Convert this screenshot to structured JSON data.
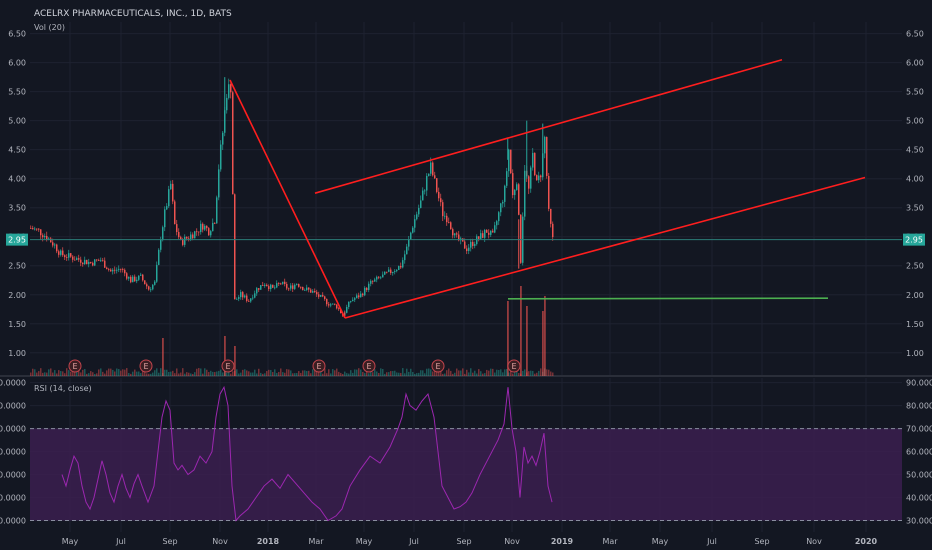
{
  "header": {
    "title": "ACELRX PHARMACEUTICALS, INC., 1D, BATS",
    "volume_label": "Vol (20)",
    "rsi_label": "RSI (14, close)"
  },
  "price_tag": "2.95",
  "colors": {
    "background": "#131722",
    "grid": "#1e2230",
    "up": "#26a69a",
    "down": "#ef5350",
    "trendline": "#ff1e1e",
    "support": "#4caf50",
    "rsi_line": "#9c27b0",
    "rsi_band": "#3b1f4f",
    "price_line": "#2c7d78"
  },
  "chart_data": [
    {
      "type": "candlestick",
      "title": "ACELRX PHARMACEUTICALS, INC., 1D, BATS",
      "ylim": [
        0.6,
        6.7
      ],
      "yticks": [
        "6.50",
        "6.00",
        "5.50",
        "5.00",
        "4.50",
        "4.00",
        "3.50",
        "3.00",
        "2.50",
        "2.00",
        "1.50",
        "1.00"
      ],
      "xticks": [
        "May",
        "Jul",
        "Sep",
        "Nov",
        "2018",
        "Mar",
        "May",
        "Jul",
        "Sep",
        "Nov",
        "2019",
        "Mar",
        "May",
        "Jul",
        "Sep",
        "Nov",
        "2020"
      ],
      "last_price": 2.95,
      "price_path": [
        [
          0,
          3.15
        ],
        [
          8,
          3.1
        ],
        [
          16,
          3.0
        ],
        [
          24,
          2.85
        ],
        [
          30,
          2.7
        ],
        [
          40,
          2.65
        ],
        [
          50,
          2.6
        ],
        [
          60,
          2.55
        ],
        [
          70,
          2.6
        ],
        [
          80,
          2.4
        ],
        [
          90,
          2.45
        ],
        [
          100,
          2.25
        ],
        [
          110,
          2.3
        ],
        [
          118,
          2.1
        ],
        [
          124,
          2.2
        ],
        [
          130,
          3.0
        ],
        [
          134,
          3.4
        ],
        [
          140,
          3.9
        ],
        [
          144,
          3.2
        ],
        [
          150,
          2.9
        ],
        [
          158,
          3.0
        ],
        [
          166,
          3.1
        ],
        [
          172,
          3.2
        ],
        [
          178,
          3.1
        ],
        [
          184,
          3.3
        ],
        [
          188,
          4.2
        ],
        [
          192,
          4.8
        ],
        [
          196,
          5.5
        ],
        [
          200,
          5.6
        ],
        [
          204,
          1.9
        ],
        [
          210,
          2.0
        ],
        [
          218,
          1.9
        ],
        [
          226,
          2.1
        ],
        [
          234,
          2.2
        ],
        [
          242,
          2.1
        ],
        [
          250,
          2.2
        ],
        [
          258,
          2.1
        ],
        [
          266,
          2.2
        ],
        [
          274,
          2.1
        ],
        [
          282,
          2.05
        ],
        [
          290,
          1.95
        ],
        [
          298,
          1.85
        ],
        [
          306,
          1.8
        ],
        [
          312,
          1.65
        ],
        [
          320,
          1.9
        ],
        [
          330,
          2.0
        ],
        [
          340,
          2.2
        ],
        [
          350,
          2.3
        ],
        [
          360,
          2.4
        ],
        [
          370,
          2.5
        ],
        [
          376,
          2.8
        ],
        [
          382,
          3.2
        ],
        [
          390,
          3.6
        ],
        [
          396,
          4.0
        ],
        [
          400,
          4.2
        ],
        [
          406,
          3.8
        ],
        [
          412,
          3.4
        ],
        [
          418,
          3.3
        ],
        [
          424,
          3.0
        ],
        [
          430,
          2.9
        ],
        [
          436,
          2.8
        ],
        [
          442,
          2.9
        ],
        [
          450,
          3.0
        ],
        [
          456,
          3.1
        ],
        [
          462,
          3.0
        ],
        [
          468,
          3.4
        ],
        [
          474,
          3.8
        ],
        [
          478,
          4.5
        ],
        [
          482,
          3.7
        ],
        [
          486,
          4.0
        ],
        [
          490,
          2.6
        ],
        [
          494,
          4.2
        ],
        [
          498,
          3.8
        ],
        [
          502,
          4.4
        ],
        [
          506,
          3.9
        ],
        [
          510,
          4.1
        ],
        [
          514,
          4.7
        ],
        [
          518,
          3.4
        ],
        [
          522,
          2.95
        ]
      ],
      "spikes": [
        [
          194,
          5.75
        ],
        [
          477,
          4.7
        ],
        [
          496,
          5.0
        ],
        [
          512,
          4.95
        ],
        [
          488,
          2.45
        ],
        [
          314,
          1.62
        ]
      ],
      "trendlines": [
        {
          "from": [
            200,
            5.7
          ],
          "to": [
            315,
            1.6
          ]
        },
        {
          "from": [
            315,
            1.6
          ],
          "to": [
            835,
            4.02
          ]
        },
        {
          "from": [
            285,
            3.75
          ],
          "to": [
            752,
            6.05
          ]
        }
      ],
      "support_line": {
        "from": [
          478,
          1.93
        ],
        "to": [
          798,
          1.94
        ]
      },
      "earnings_markers": [
        "E",
        "E",
        "E",
        "E",
        "E",
        "E",
        "E"
      ],
      "earnings_x": [
        75,
        146,
        228,
        319,
        369,
        438,
        514
      ]
    },
    {
      "type": "line",
      "title": "RSI (14, close)",
      "ylim": [
        25,
        92
      ],
      "yticks": [
        "90.0000",
        "80.0000",
        "70.0000",
        "60.0000",
        "50.0000",
        "40.0000",
        "30.0000"
      ],
      "bands": [
        30,
        70
      ],
      "rsi_path": [
        [
          32,
          50
        ],
        [
          36,
          45
        ],
        [
          40,
          52
        ],
        [
          44,
          58
        ],
        [
          48,
          55
        ],
        [
          52,
          45
        ],
        [
          56,
          38
        ],
        [
          60,
          35
        ],
        [
          64,
          40
        ],
        [
          68,
          48
        ],
        [
          72,
          56
        ],
        [
          76,
          50
        ],
        [
          80,
          42
        ],
        [
          84,
          38
        ],
        [
          88,
          45
        ],
        [
          92,
          50
        ],
        [
          96,
          44
        ],
        [
          100,
          40
        ],
        [
          104,
          46
        ],
        [
          108,
          50
        ],
        [
          112,
          45
        ],
        [
          118,
          38
        ],
        [
          124,
          45
        ],
        [
          128,
          60
        ],
        [
          132,
          75
        ],
        [
          136,
          82
        ],
        [
          140,
          78
        ],
        [
          144,
          55
        ],
        [
          148,
          52
        ],
        [
          152,
          54
        ],
        [
          158,
          50
        ],
        [
          164,
          52
        ],
        [
          170,
          58
        ],
        [
          176,
          55
        ],
        [
          182,
          60
        ],
        [
          186,
          75
        ],
        [
          190,
          85
        ],
        [
          194,
          88
        ],
        [
          198,
          80
        ],
        [
          202,
          45
        ],
        [
          206,
          30
        ],
        [
          210,
          32
        ],
        [
          218,
          35
        ],
        [
          226,
          40
        ],
        [
          234,
          45
        ],
        [
          242,
          48
        ],
        [
          250,
          44
        ],
        [
          258,
          50
        ],
        [
          266,
          46
        ],
        [
          274,
          42
        ],
        [
          282,
          38
        ],
        [
          290,
          35
        ],
        [
          298,
          30
        ],
        [
          306,
          32
        ],
        [
          312,
          35
        ],
        [
          320,
          45
        ],
        [
          330,
          52
        ],
        [
          340,
          58
        ],
        [
          350,
          55
        ],
        [
          360,
          62
        ],
        [
          368,
          70
        ],
        [
          372,
          75
        ],
        [
          376,
          85
        ],
        [
          380,
          80
        ],
        [
          386,
          78
        ],
        [
          392,
          82
        ],
        [
          398,
          85
        ],
        [
          404,
          75
        ],
        [
          408,
          60
        ],
        [
          412,
          45
        ],
        [
          418,
          40
        ],
        [
          424,
          35
        ],
        [
          430,
          36
        ],
        [
          436,
          38
        ],
        [
          442,
          42
        ],
        [
          450,
          50
        ],
        [
          456,
          55
        ],
        [
          462,
          60
        ],
        [
          468,
          65
        ],
        [
          474,
          72
        ],
        [
          478,
          88
        ],
        [
          482,
          70
        ],
        [
          486,
          60
        ],
        [
          490,
          40
        ],
        [
          494,
          62
        ],
        [
          498,
          55
        ],
        [
          502,
          58
        ],
        [
          506,
          54
        ],
        [
          510,
          60
        ],
        [
          514,
          68
        ],
        [
          518,
          45
        ],
        [
          522,
          38
        ]
      ]
    }
  ]
}
